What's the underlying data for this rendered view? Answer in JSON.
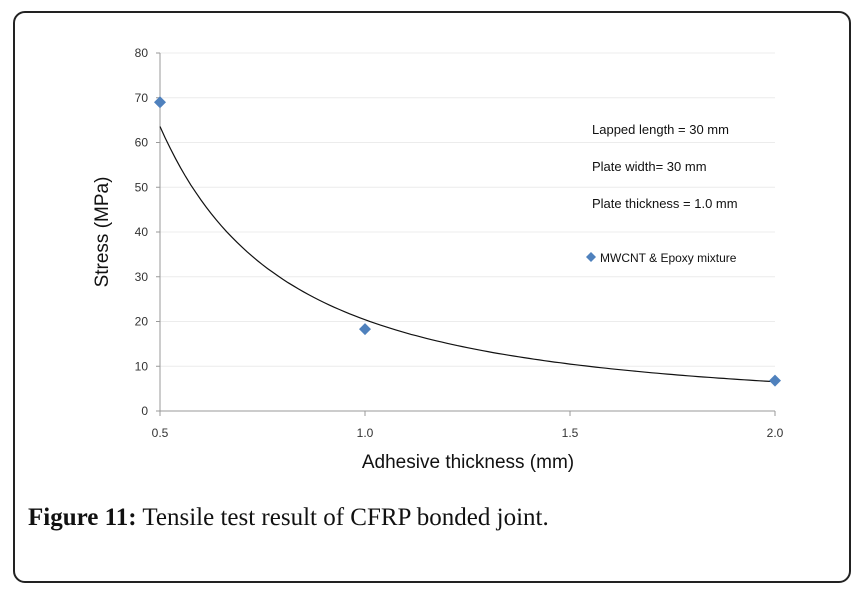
{
  "caption": {
    "label": "Figure 11:",
    "text": "Tensile test result of CFRP bonded joint."
  },
  "chart_data": {
    "type": "scatter",
    "xlabel": "Adhesive thickness (mm)",
    "ylabel": "Stress (MPa)",
    "xlim": [
      0.5,
      2.0
    ],
    "ylim": [
      0,
      80
    ],
    "x_ticks": [
      0.5,
      1.0,
      1.5,
      2.0
    ],
    "x_tick_labels": [
      "0.5",
      "1.0",
      "1.5",
      "2.0"
    ],
    "y_ticks": [
      0,
      10,
      20,
      30,
      40,
      50,
      60,
      70,
      80
    ],
    "grid": "horizontal",
    "series": [
      {
        "name": "MWCNT & Epoxy mixture",
        "marker": "diamond",
        "color": "#4f81bd",
        "x": [
          0.5,
          1.0,
          2.0
        ],
        "y": [
          69,
          18.3,
          6.8
        ]
      }
    ],
    "trendline": {
      "type": "power",
      "equation_y": "20.4 * x^-1.64",
      "color": "#111111"
    },
    "annotations": [
      "Lapped length = 30 mm",
      "Plate width= 30 mm",
      "Plate thickness = 1.0 mm"
    ],
    "legend_position": "right"
  }
}
